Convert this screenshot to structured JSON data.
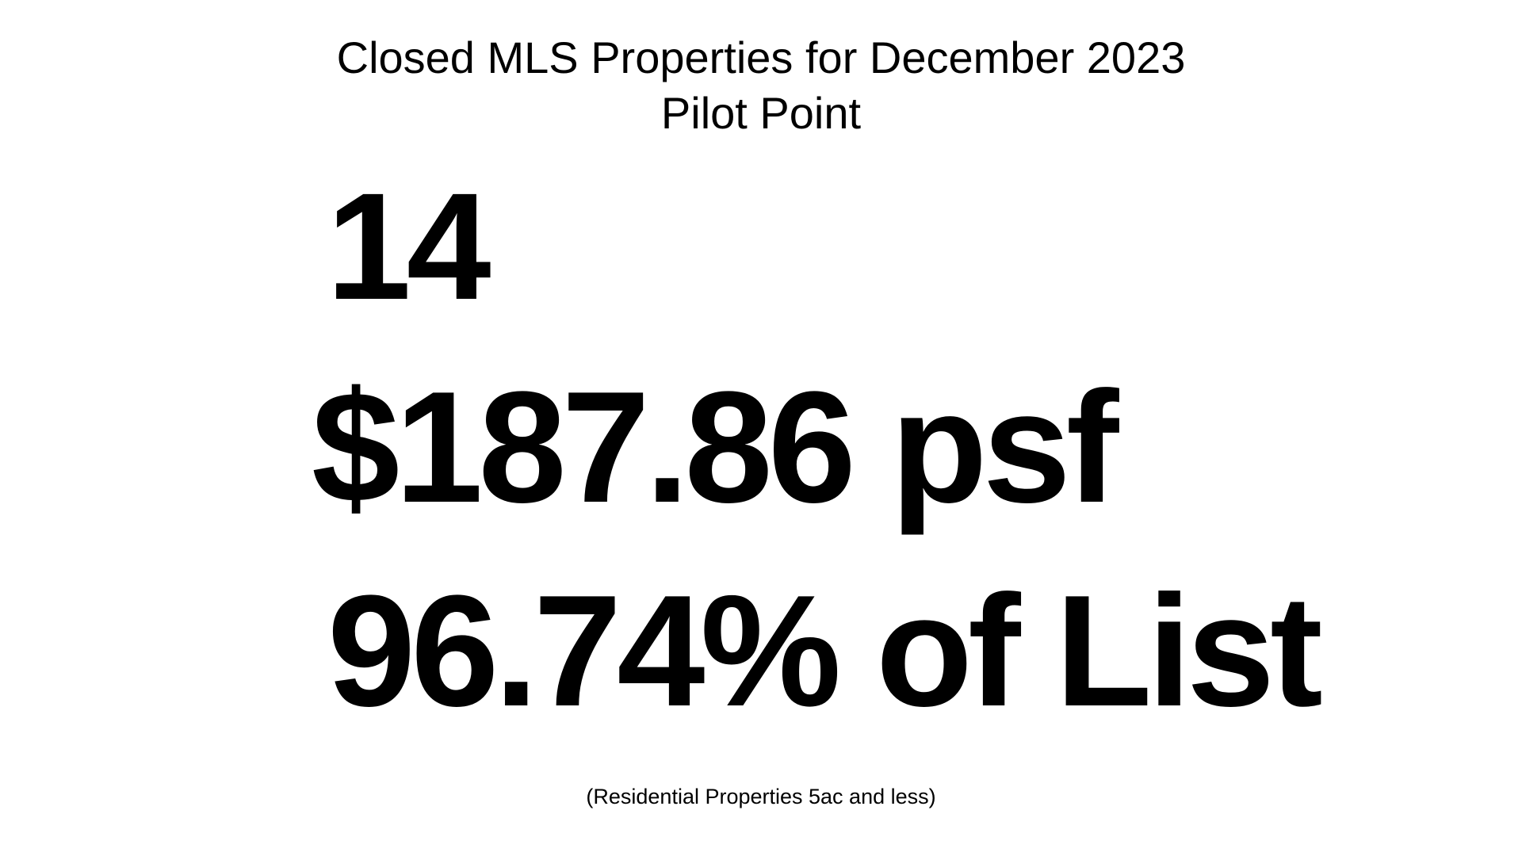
{
  "header": {
    "title_line1": "Closed MLS Properties for December 2023",
    "title_line2": "Pilot Point"
  },
  "stats": {
    "closed_count": "14",
    "price_per_sqft": "$187.86 psf",
    "percent_of_list": "96.74% of List"
  },
  "footer": {
    "note": "(Residential Properties 5ac and less)"
  },
  "colors": {
    "background": "#ffffff",
    "text": "#000000"
  }
}
